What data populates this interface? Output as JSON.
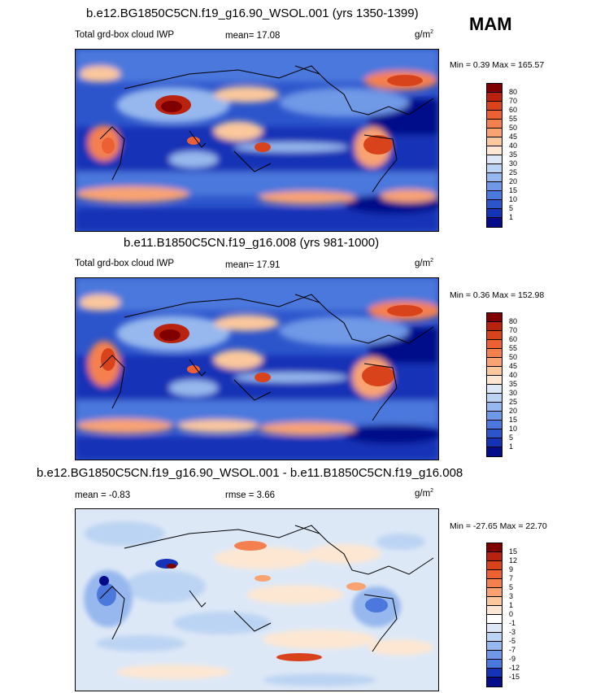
{
  "season": "MAM",
  "panels": [
    {
      "title": "b.e12.BG1850C5CN.f19_g16.90_WSOL.001 (yrs 1350-1399)",
      "left_label": "Total grd-box cloud IWP",
      "stat1": "mean=  17.08",
      "stat2": "",
      "units": "g/m",
      "units_sup": "2",
      "minmax": "Min =  0.39 Max = 165.57",
      "levels": [
        "80",
        "70",
        "60",
        "55",
        "50",
        "45",
        "40",
        "35",
        "30",
        "25",
        "20",
        "15",
        "10",
        "5",
        "1"
      ],
      "colors": [
        "#800000",
        "#b8220f",
        "#d8431c",
        "#ec6033",
        "#f5804f",
        "#f9a373",
        "#fbc79c",
        "#fde7d3",
        "#dde8f7",
        "#bcd4f3",
        "#96b8ee",
        "#6f99e6",
        "#4b78dc",
        "#2c55cc",
        "#1533b6",
        "#050c8a"
      ]
    },
    {
      "title": "b.e11.B1850C5CN.f19_g16.008 (yrs 981-1000)",
      "left_label": "Total grd-box cloud IWP",
      "stat1": "mean=  17.91",
      "stat2": "",
      "units": "g/m",
      "units_sup": "2",
      "minmax": "Min =  0.36 Max = 152.98",
      "levels": [
        "80",
        "70",
        "60",
        "55",
        "50",
        "45",
        "40",
        "35",
        "30",
        "25",
        "20",
        "15",
        "10",
        "5",
        "1"
      ],
      "colors": [
        "#800000",
        "#b8220f",
        "#d8431c",
        "#ec6033",
        "#f5804f",
        "#f9a373",
        "#fbc79c",
        "#fde7d3",
        "#dde8f7",
        "#bcd4f3",
        "#96b8ee",
        "#6f99e6",
        "#4b78dc",
        "#2c55cc",
        "#1533b6",
        "#050c8a"
      ]
    },
    {
      "title": "b.e12.BG1850C5CN.f19_g16.90_WSOL.001 - b.e11.B1850C5CN.f19_g16.008",
      "left_label": "",
      "stat1": "mean =  -0.83",
      "stat2": "rmse =   3.66",
      "units": "g/m",
      "units_sup": "2",
      "minmax": "Min = -27.65 Max =  22.70",
      "levels": [
        "15",
        "12",
        "9",
        "7",
        "5",
        "3",
        "1",
        "0",
        "-1",
        "-3",
        "-5",
        "-7",
        "-9",
        "-12",
        "-15"
      ],
      "colors": [
        "#800000",
        "#b8220f",
        "#d8431c",
        "#ec6033",
        "#f5804f",
        "#f9a373",
        "#fbc79c",
        "#fde7d3",
        "#ffffff",
        "#dde8f7",
        "#bcd4f3",
        "#96b8ee",
        "#6f99e6",
        "#4b78dc",
        "#1533b6",
        "#050c8a"
      ]
    }
  ]
}
